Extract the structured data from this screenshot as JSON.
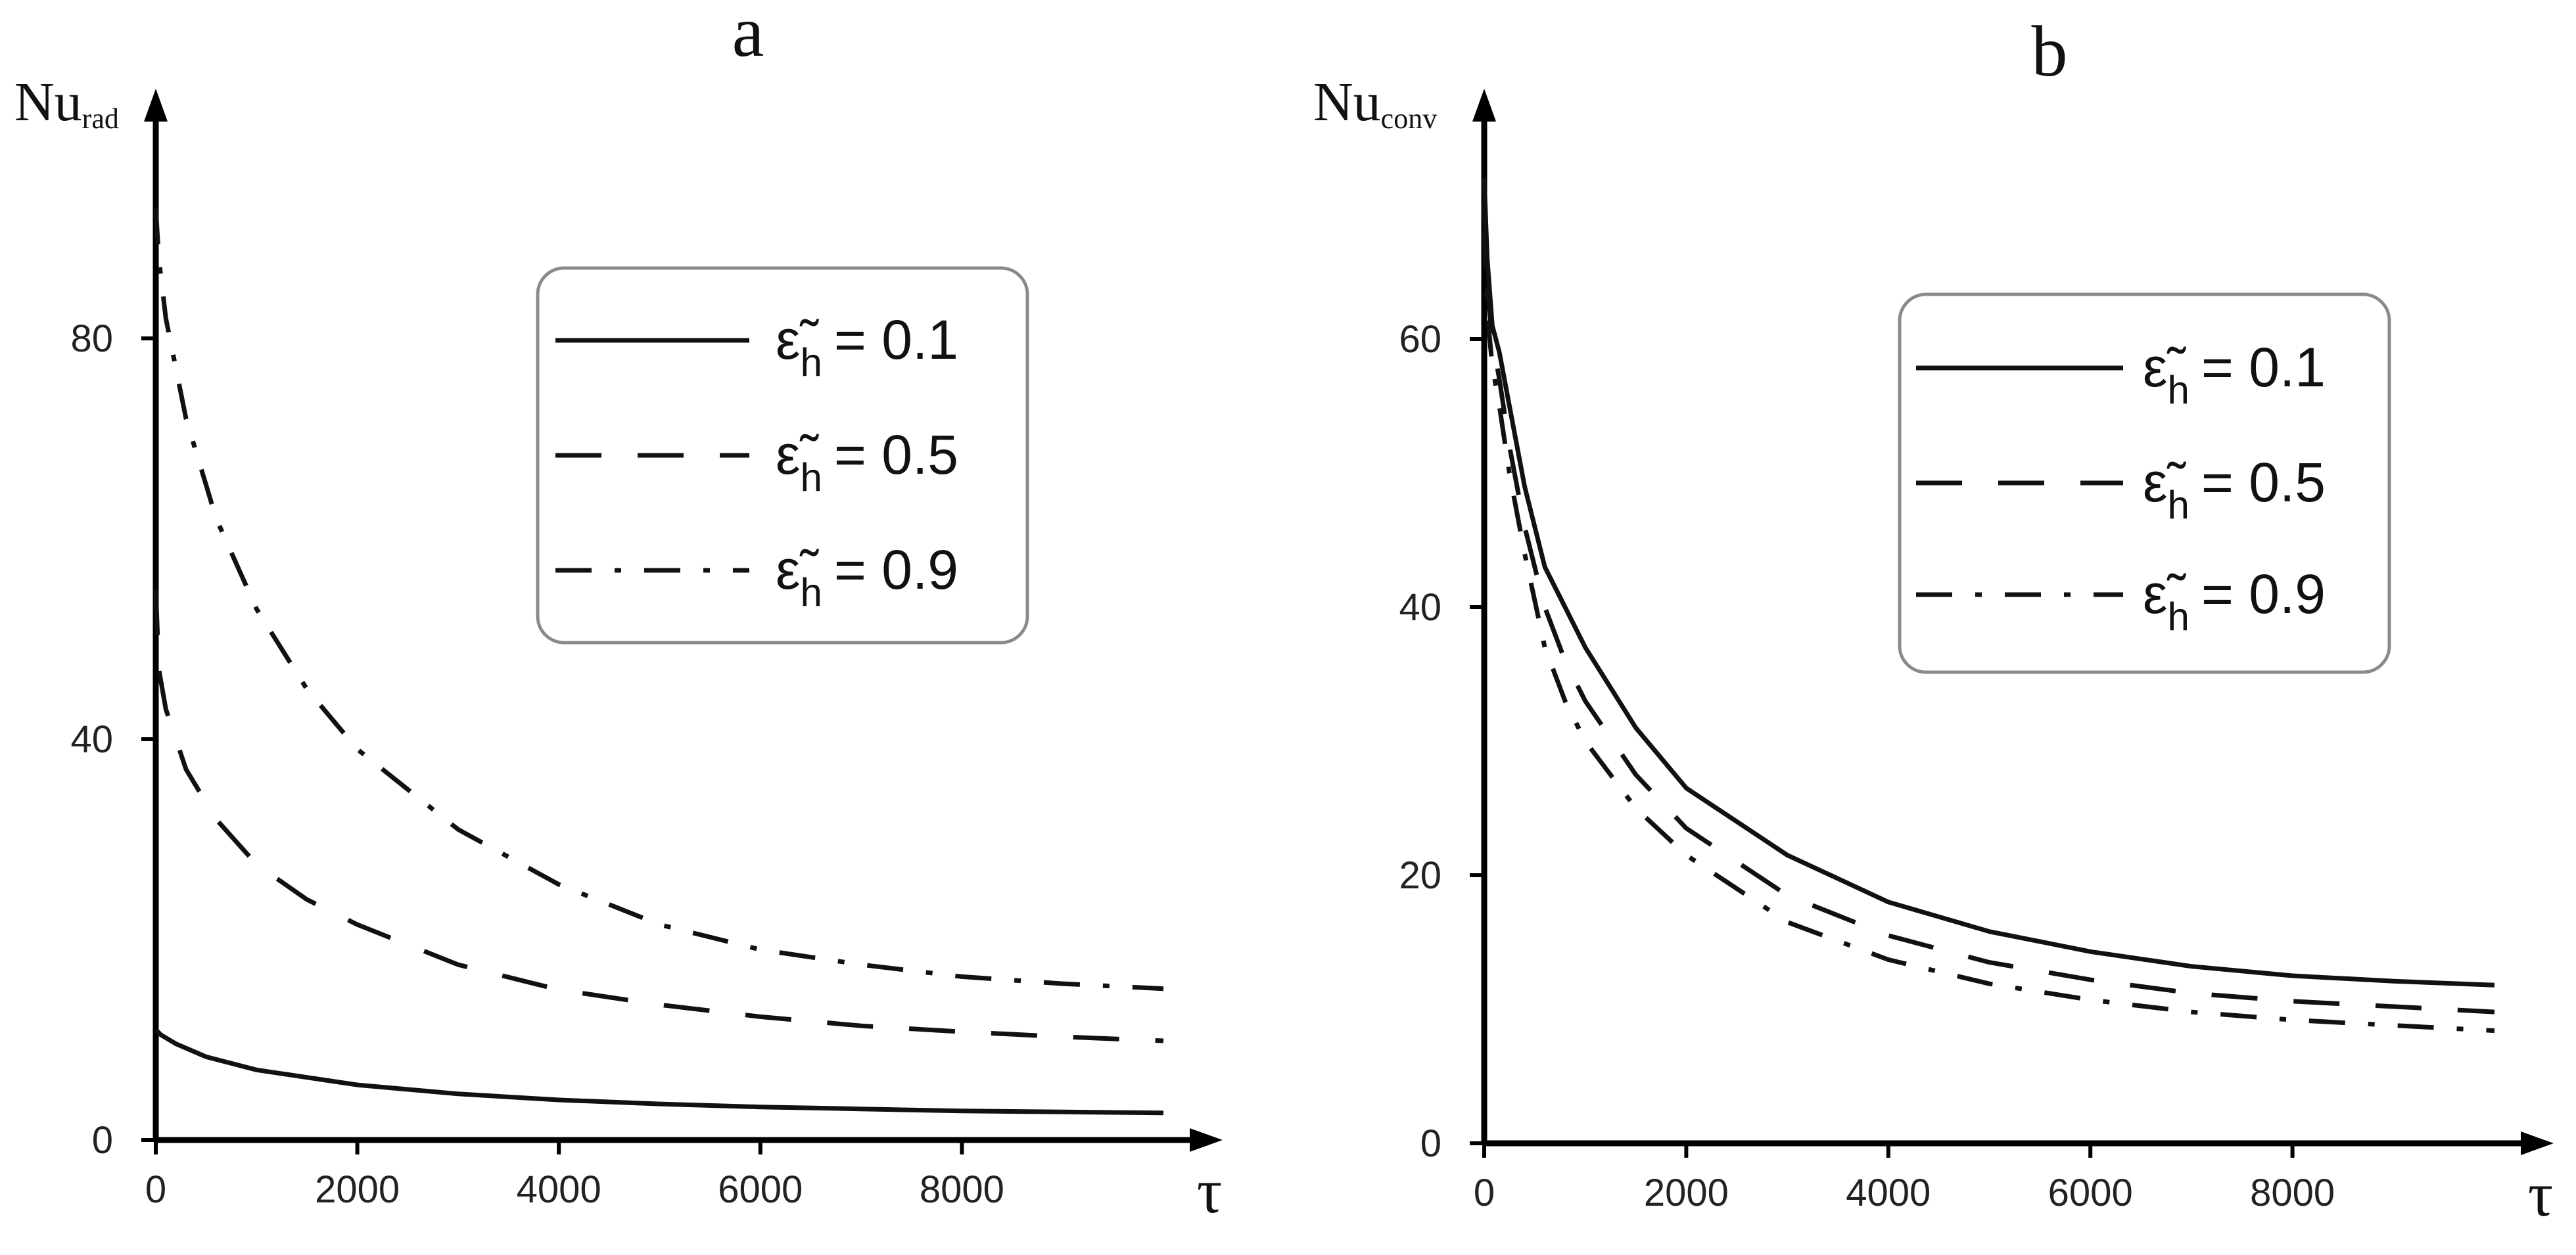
{
  "chart_data": [
    {
      "type": "line",
      "panel": "a",
      "ylabel_main": "Nu",
      "ylabel_sub": "rad",
      "xlabel": "τ",
      "xlim": [
        0,
        10000
      ],
      "ylim": [
        0,
        100
      ],
      "xticks": [
        0,
        2000,
        4000,
        6000,
        8000
      ],
      "yticks": [
        0,
        40,
        80
      ],
      "legend_position": "top-right",
      "series": [
        {
          "name": "ε̃h = 0.1",
          "symbol": "ε̃",
          "sub": "h",
          "value_text": "= 0.1",
          "style": "solid",
          "x": [
            0,
            50,
            200,
            500,
            1000,
            2000,
            3000,
            4000,
            5000,
            6000,
            7000,
            8000,
            9000,
            10000
          ],
          "y": [
            11,
            10.5,
            9.6,
            8.3,
            7.0,
            5.5,
            4.6,
            4.0,
            3.6,
            3.3,
            3.1,
            2.9,
            2.8,
            2.7
          ]
        },
        {
          "name": "ε̃h = 0.5",
          "symbol": "ε̃",
          "sub": "h",
          "value_text": "= 0.5",
          "style": "dash",
          "x": [
            0,
            30,
            100,
            300,
            600,
            1000,
            1500,
            2000,
            3000,
            4000,
            5000,
            6000,
            7000,
            8000,
            9000,
            10000
          ],
          "y": [
            55,
            47,
            43,
            37,
            32,
            27.5,
            24,
            21.5,
            17.5,
            15,
            13.5,
            12.3,
            11.4,
            10.8,
            10.3,
            9.9
          ]
        },
        {
          "name": "ε̃h = 0.9",
          "symbol": "ε̃",
          "sub": "h",
          "value_text": "= 0.9",
          "style": "dashdot",
          "x": [
            0,
            30,
            100,
            300,
            600,
            1000,
            1500,
            2000,
            3000,
            4000,
            5000,
            6000,
            7000,
            8000,
            9000,
            10000
          ],
          "y": [
            93,
            88,
            82,
            72,
            62,
            53,
            45,
            39,
            31,
            25.5,
            21.5,
            19,
            17.5,
            16.3,
            15.6,
            15.1
          ]
        }
      ]
    },
    {
      "type": "line",
      "panel": "b",
      "ylabel_main": "Nu",
      "ylabel_sub": "conv",
      "xlabel": "τ",
      "xlim": [
        0,
        10000
      ],
      "ylim": [
        0,
        75
      ],
      "xticks": [
        0,
        2000,
        4000,
        6000,
        8000
      ],
      "yticks": [
        0,
        20,
        40,
        60
      ],
      "legend_position": "top-right",
      "series": [
        {
          "name": "ε̃h = 0.1",
          "symbol": "ε̃",
          "sub": "h",
          "value_text": "= 0.1",
          "style": "solid",
          "x": [
            0,
            30,
            80,
            150,
            250,
            400,
            600,
            800,
            1000,
            1500,
            2000,
            3000,
            4000,
            5000,
            6000,
            7000,
            8000,
            9000,
            10000
          ],
          "y": [
            72,
            66,
            61,
            59,
            55,
            49,
            43,
            40,
            37,
            31,
            26.5,
            21.5,
            18,
            15.8,
            14.3,
            13.2,
            12.5,
            12.1,
            11.8
          ]
        },
        {
          "name": "ε̃h = 0.5",
          "symbol": "ε̃",
          "sub": "h",
          "value_text": "= 0.5",
          "style": "dash",
          "x": [
            0,
            30,
            80,
            150,
            250,
            400,
            600,
            800,
            1000,
            1500,
            2000,
            3000,
            4000,
            5000,
            6000,
            7000,
            8000,
            9000,
            10000
          ],
          "y": [
            70,
            64,
            60,
            57,
            52,
            46,
            40,
            36,
            33,
            27.5,
            23.5,
            18.5,
            15.5,
            13.5,
            12.2,
            11.2,
            10.6,
            10.2,
            9.8
          ]
        },
        {
          "name": "ε̃h = 0.9",
          "symbol": "ε̃",
          "sub": "h",
          "value_text": "= 0.9",
          "style": "dashdot",
          "x": [
            0,
            30,
            80,
            150,
            250,
            400,
            600,
            800,
            1000,
            1500,
            2000,
            3000,
            4000,
            5000,
            6000,
            7000,
            8000,
            9000,
            10000
          ],
          "y": [
            68,
            62,
            58,
            55,
            50,
            44,
            37,
            33,
            30,
            25,
            21.5,
            16.5,
            13.7,
            11.9,
            10.7,
            9.8,
            9.2,
            8.8,
            8.4
          ]
        }
      ]
    }
  ]
}
